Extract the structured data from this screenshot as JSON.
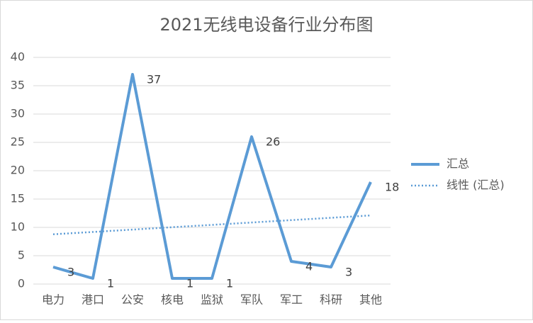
{
  "chart_data": {
    "type": "line",
    "title": "2021无线电设备行业分布图",
    "categories": [
      "电力",
      "港口",
      "公安",
      "核电",
      "监狱",
      "军队",
      "军工",
      "科研",
      "其他"
    ],
    "series": [
      {
        "name": "汇总",
        "color": "#5b9bd5",
        "style": "solid",
        "data_labels": true,
        "values": [
          3,
          1,
          37,
          1,
          1,
          26,
          4,
          3,
          18
        ]
      },
      {
        "name": "线性 (汇总)",
        "color": "#5b9bd5",
        "style": "dotted",
        "data_labels": false,
        "values": [
          8.78,
          9.19,
          9.61,
          10.03,
          10.44,
          10.86,
          11.28,
          11.69,
          12.11
        ]
      }
    ],
    "ylim": [
      0,
      40
    ],
    "yticks": [
      0,
      5,
      10,
      15,
      20,
      25,
      30,
      35,
      40
    ],
    "grid": true,
    "legend": "right"
  }
}
